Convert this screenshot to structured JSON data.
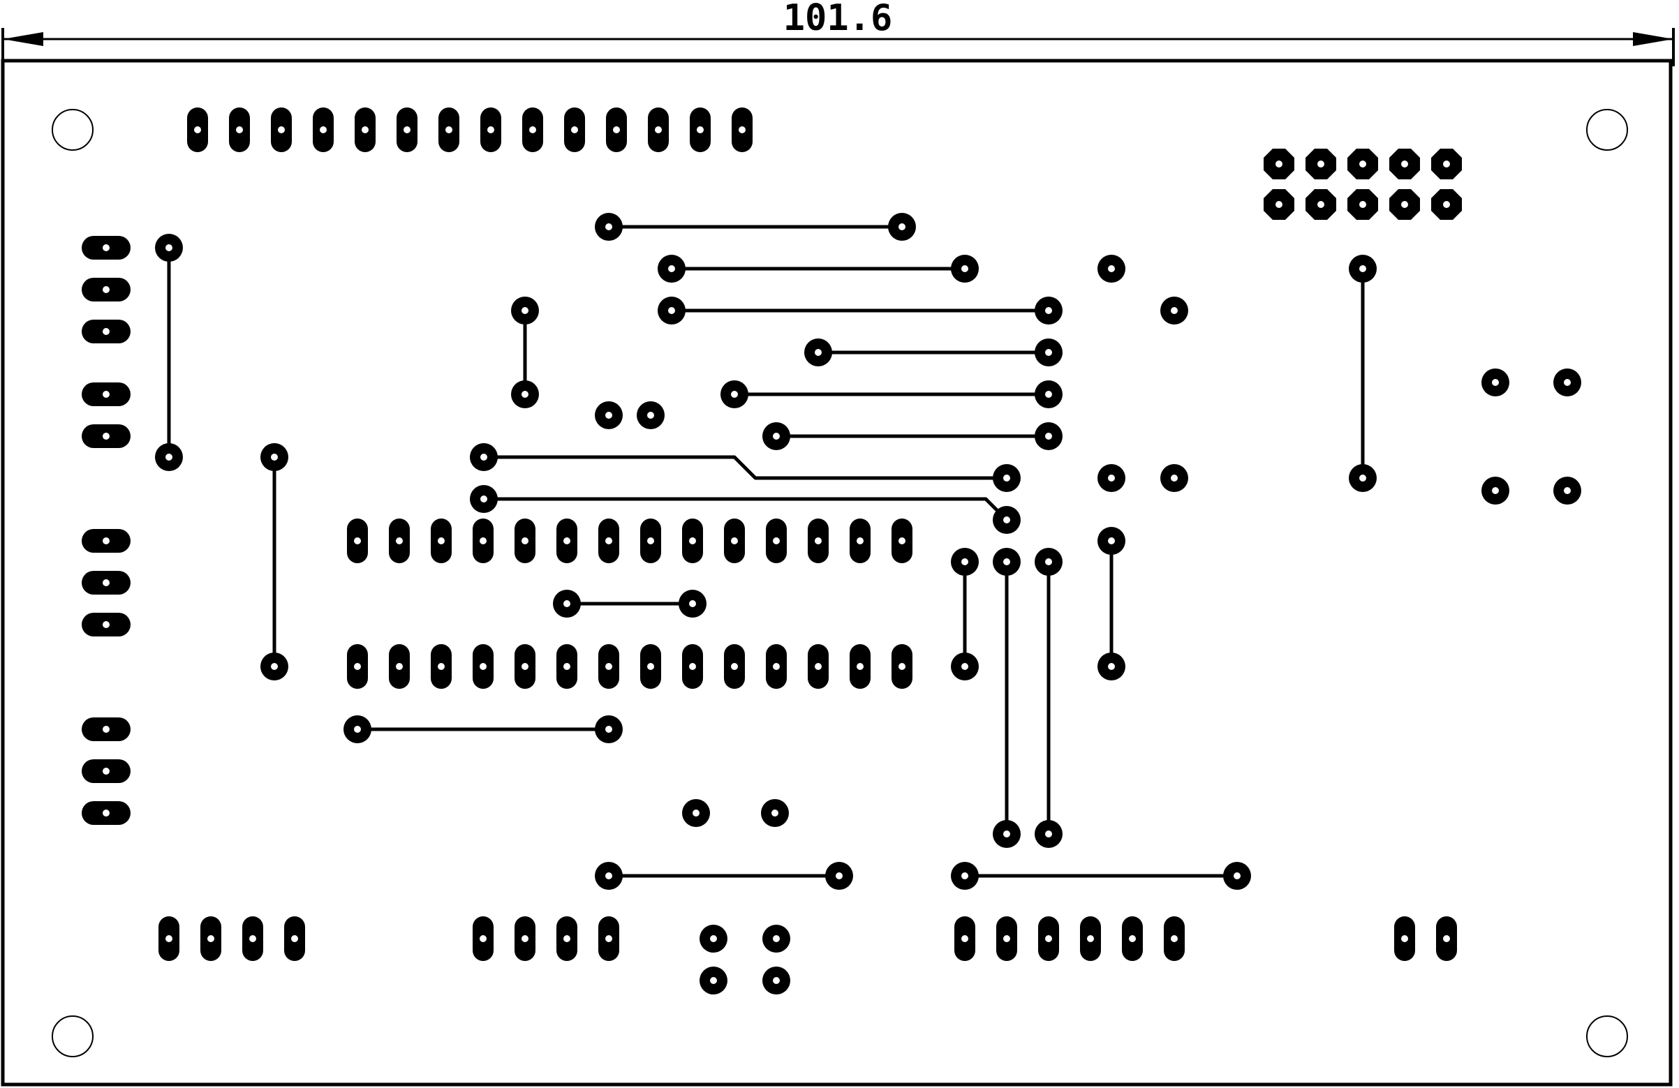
{
  "dimension": {
    "label": "101.6"
  },
  "colors": {
    "copper": "#000000",
    "board_background": "#ffffff",
    "drill": "#ffffff",
    "outline": "#000000"
  },
  "components": [
    {
      "id": "top-header-14",
      "pad_shape": "oval-vertical",
      "pins": 14
    },
    {
      "id": "pin-header-2x5",
      "pad_shape": "octagon",
      "pins": 10
    },
    {
      "id": "left-connector-a",
      "pad_shape": "oval-horizontal",
      "pins": 3
    },
    {
      "id": "left-connector-b",
      "pad_shape": "oval-horizontal",
      "pins": 2
    },
    {
      "id": "left-connector-c",
      "pad_shape": "oval-horizontal",
      "pins": 3
    },
    {
      "id": "left-connector-d",
      "pad_shape": "oval-horizontal",
      "pins": 3
    },
    {
      "id": "dip-28",
      "pad_shape": "oval-vertical",
      "pins": 28
    },
    {
      "id": "bottom-connector-4a",
      "pad_shape": "oval-vertical",
      "pins": 4
    },
    {
      "id": "bottom-connector-4b",
      "pad_shape": "oval-vertical",
      "pins": 4
    },
    {
      "id": "bottom-connector-6",
      "pad_shape": "oval-vertical",
      "pins": 6
    },
    {
      "id": "bottom-connector-2",
      "pad_shape": "oval-vertical",
      "pins": 2
    },
    {
      "id": "pushbutton",
      "pad_shape": "round",
      "pins": 4
    },
    {
      "id": "crystal-network",
      "pad_shape": "round",
      "pins": 4
    }
  ],
  "mounting_holes": 4
}
